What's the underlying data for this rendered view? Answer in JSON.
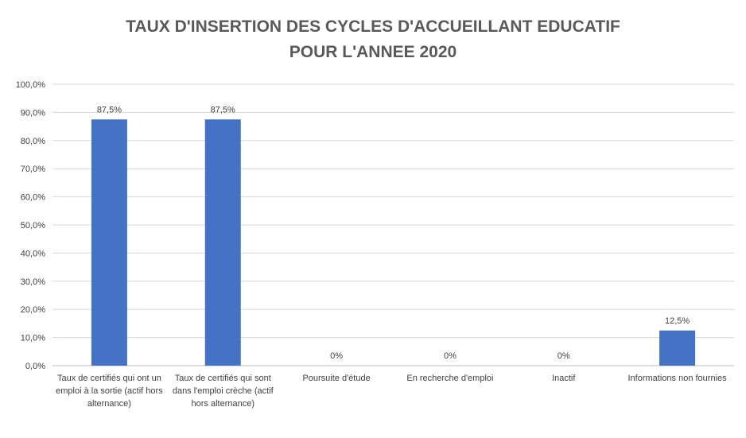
{
  "chart_data": {
    "type": "bar",
    "title_lines": [
      "TAUX D'INSERTION DES CYCLES D'ACCUEILLANT EDUCATIF",
      "POUR L'ANNEE 2020"
    ],
    "categories": [
      [
        "Taux de certifiés qui ont un",
        "emploi à la sortie (actif hors",
        "alternance)"
      ],
      [
        "Taux de certifiés qui sont",
        "dans l'emploi crèche (actif",
        "hors alternance)"
      ],
      [
        "Poursuite d'étude"
      ],
      [
        "En recherche d'emploi"
      ],
      [
        "Inactif"
      ],
      [
        "Informations non fournies"
      ]
    ],
    "values": [
      87.5,
      87.5,
      0,
      0,
      0,
      12.5
    ],
    "data_labels": [
      "87,5%",
      "87,5%",
      "0%",
      "0%",
      "0%",
      "12,5%"
    ],
    "ylim": [
      0,
      100
    ],
    "y_ticks": [
      0,
      10,
      20,
      30,
      40,
      50,
      60,
      70,
      80,
      90,
      100
    ],
    "y_tick_labels": [
      "0,0%",
      "10,0%",
      "20,0%",
      "30,0%",
      "40,0%",
      "50,0%",
      "60,0%",
      "70,0%",
      "80,0%",
      "90,0%",
      "100,0%"
    ],
    "grid": true,
    "legend": "none",
    "bar_color": "#4472C4",
    "gridline_color": "#D9D9D9",
    "axis_color": "#BFBFBF",
    "text_color": "#404040",
    "title_color": "#595959"
  }
}
